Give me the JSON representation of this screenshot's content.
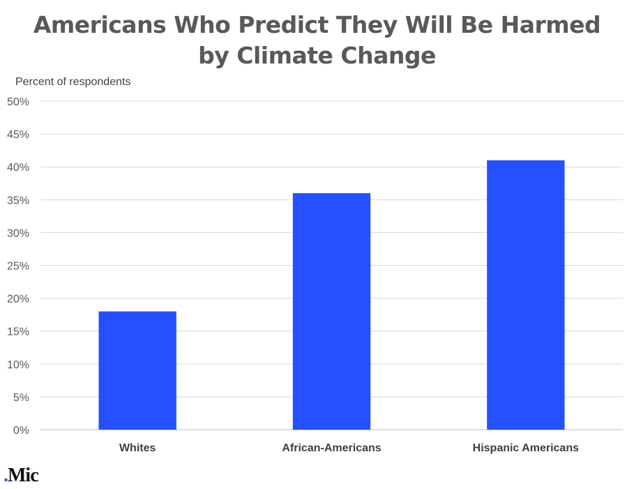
{
  "chart_data": {
    "type": "bar",
    "title_lines": [
      "Americans Who Predict They Will Be Harmed",
      "by Climate Change"
    ],
    "ylabel": "Percent of respondents",
    "categories": [
      "Whites",
      "African-Americans",
      "Hispanic Americans"
    ],
    "values": [
      18,
      36,
      41
    ],
    "ylim": [
      0,
      50
    ],
    "yticks": [
      0,
      5,
      10,
      15,
      20,
      25,
      30,
      35,
      40,
      45,
      50
    ],
    "ytick_labels": [
      "0%",
      "5%",
      "10%",
      "15%",
      "20%",
      "25%",
      "30%",
      "35%",
      "40%",
      "45%",
      "50%"
    ],
    "bar_color": "#2450ff",
    "grid": true,
    "legend": "none"
  },
  "branding": {
    "logo_dot": ".",
    "logo_text": "Mic"
  }
}
